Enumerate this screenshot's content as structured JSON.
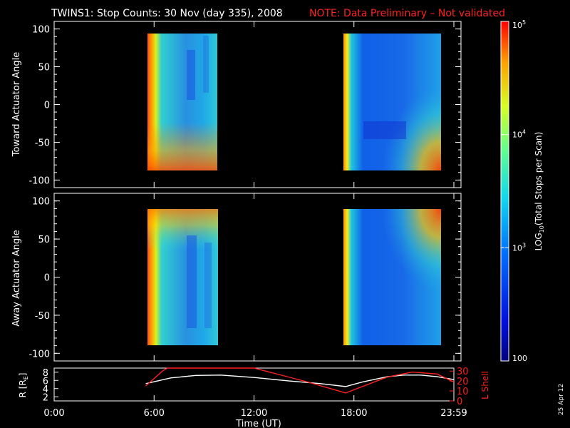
{
  "header": {
    "title": "TWINS1: Stop Counts: 30 Nov (day 335), 2008",
    "note": "NOTE: Data Preliminary – Not validated",
    "note_color": "#ff2020"
  },
  "date_stamp": "25 Apr 12",
  "chart_data": [
    {
      "type": "heatmap",
      "panel": "top",
      "ylabel": "Toward Actuator Angle",
      "ylim": [
        -110,
        110
      ],
      "y_ticks": [
        "-100",
        "-50",
        "0",
        "50",
        "100"
      ],
      "time_blocks_hours": [
        [
          5.5,
          9.75
        ],
        [
          17.5,
          24.0
        ]
      ],
      "angle_range": [
        -90,
        90
      ],
      "colormap": "rainbow"
    },
    {
      "type": "heatmap",
      "panel": "middle",
      "ylabel": "Away Actuator Angle",
      "ylim": [
        -110,
        110
      ],
      "y_ticks": [
        "-100",
        "-50",
        "0",
        "50",
        "100"
      ],
      "time_blocks_hours": [
        [
          5.5,
          9.75
        ],
        [
          17.5,
          24.0
        ]
      ],
      "angle_range": [
        -90,
        90
      ],
      "colormap": "rainbow"
    },
    {
      "type": "line",
      "panel": "orbit",
      "ylabel_left": "R [R",
      "ylabel_left_sub": "E",
      "ylabel_left_end": "]",
      "ylabel_right": "L Shell",
      "left_ticks": [
        "2",
        "4",
        "6",
        "8"
      ],
      "left_ylim": [
        1,
        9
      ],
      "right_ticks": [
        "0",
        "10",
        "20",
        "30"
      ],
      "right_ylim": [
        0,
        33
      ],
      "right_color": "#ff2020",
      "x_ticks": [
        "0:00",
        "6:00",
        "12:00",
        "18:00",
        "23:59"
      ],
      "x_tick_hours": [
        0,
        6,
        12,
        18,
        24
      ],
      "xlim": [
        0,
        24
      ],
      "xlabel": "Time (UT)",
      "series": [
        {
          "axis": "left",
          "color": "#ffffff",
          "x": [
            5.5,
            7.0,
            8.5,
            10.0,
            12.0,
            14.0,
            16.0,
            17.5,
            18.5,
            20.0,
            21.0,
            22.0,
            23.0,
            24.0
          ],
          "y": [
            5.2,
            6.6,
            7.2,
            7.3,
            6.7,
            5.9,
            5.2,
            4.5,
            5.6,
            6.9,
            7.3,
            7.3,
            6.9,
            6.2
          ]
        },
        {
          "axis": "right",
          "color": "#ff2020",
          "x": [
            5.5,
            6.5,
            6.8,
            12.0,
            12.0,
            15.0,
            17.5,
            20.0,
            21.5,
            23.0,
            24.0
          ],
          "y": [
            15,
            30,
            33,
            33,
            33,
            20,
            8,
            24,
            29,
            27,
            19
          ]
        }
      ]
    }
  ],
  "colorbar": {
    "label_prefix": "LOG",
    "label_sub": "10",
    "label_suffix": "(Total Stops per Scan)",
    "ticks": [
      {
        "base": "10",
        "exp": "5",
        "value": 100000
      },
      {
        "base": "10",
        "exp": "4",
        "value": 10000
      },
      {
        "base": "10",
        "exp": "3",
        "value": 1000
      },
      {
        "base": "100",
        "exp": "",
        "value": 100
      }
    ],
    "range": [
      100,
      100000
    ]
  }
}
